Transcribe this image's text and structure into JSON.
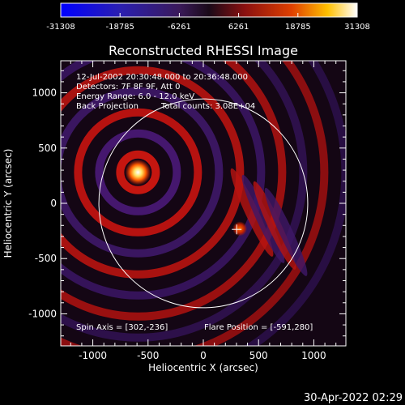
{
  "chart_data": {
    "type": "heatmap",
    "title": "Reconstructed RHESSI Image",
    "xlabel": "Heliocentric X (arcsec)",
    "ylabel": "Heliocentric Y (arcsec)",
    "xlim": [
      -1290,
      1290
    ],
    "ylim": [
      -1290,
      1290
    ],
    "x_ticks": [
      -1000,
      -500,
      0,
      500,
      1000
    ],
    "y_ticks": [
      -1000,
      -500,
      0,
      500,
      1000
    ],
    "x_tick_labels": [
      "-1000",
      "-500",
      "0",
      "500",
      "1000"
    ],
    "y_tick_labels": [
      "-1000",
      "-500",
      "0",
      "500",
      "1000"
    ],
    "colorbar": {
      "min": -31308,
      "max": 31308,
      "tick_labels": [
        "-31308",
        "-18785",
        "-6261",
        "6261",
        "18785",
        "31308"
      ]
    },
    "info_lines": [
      "12-Jul-2002 20:30:48.000 to 20:36:48.000",
      "Detectors: 7F 8F 9F, Att 0",
      "Energy Range: 6.0 - 12.0 keV",
      "Back Projection",
      "Total counts: 3.08E+04"
    ],
    "spin_axis_label": "Spin Axis = [302,-236]",
    "flare_position_label": "Flare Position = [-591,280]",
    "solar_limb": {
      "center": [
        0,
        0
      ],
      "radius_arcsec": 945
    },
    "sources": [
      {
        "x": -591,
        "y": 280,
        "peak": 31308
      },
      {
        "x": 330,
        "y": -230,
        "peak": 14000
      }
    ],
    "spin_axis_marker": {
      "x": 302,
      "y": -236
    }
  },
  "timestamp": "30-Apr-2022 02:29"
}
